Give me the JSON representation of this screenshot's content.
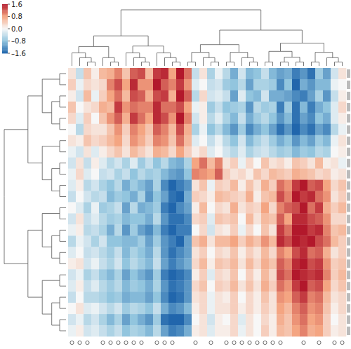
{
  "chart_data": {
    "type": "heatmap",
    "tick_labels": false,
    "color_range": [
      -1.6,
      1.6
    ],
    "color_ticks": [
      1.6,
      0.8,
      {
        "value": 0,
        "label": "0.0"
      },
      {
        "value": -0.8,
        "label": "–0.8"
      },
      {
        "value": -1.6,
        "label": "–1.6"
      }
    ],
    "column_markers": [
      1,
      1,
      1,
      0,
      1,
      1,
      1,
      1,
      1,
      1,
      0,
      1,
      1,
      1,
      0,
      0,
      1,
      0,
      1,
      0,
      1,
      1,
      1,
      1,
      1,
      1,
      1,
      1,
      0,
      0,
      1,
      0,
      1,
      0,
      1,
      1
    ],
    "cells": [
      [
        0.2,
        -0.4,
        0.5,
        0.1,
        0.6,
        0.7,
        1.0,
        0.5,
        1.2,
        1.3,
        0.6,
        1.4,
        1.5,
        0.8,
        1.6,
        1.1,
        -0.4,
        0.2,
        -0.6,
        -0.1,
        -0.5,
        -1.0,
        -0.3,
        -0.9,
        -0.8,
        -0.4,
        -0.9,
        -1.1,
        -1.0,
        -1.4,
        -1.2,
        -1.5,
        -0.7,
        -1.1,
        -0.3,
        0.2
      ],
      [
        0.4,
        -0.1,
        0.3,
        0.2,
        0.3,
        1.0,
        1.3,
        0.8,
        1.5,
        0.9,
        0.9,
        1.6,
        1.2,
        1.0,
        1.4,
        0.9,
        -0.2,
        0.0,
        -0.4,
        -0.3,
        -0.7,
        -0.8,
        -0.5,
        -1.1,
        -0.6,
        -0.6,
        -0.7,
        -1.3,
        -0.8,
        -1.6,
        -1.0,
        -1.2,
        -0.9,
        -0.9,
        -0.1,
        0.0
      ],
      [
        0.1,
        -0.3,
        0.6,
        -0.1,
        0.4,
        0.8,
        1.1,
        0.6,
        1.3,
        1.2,
        0.7,
        1.3,
        1.4,
        0.7,
        1.6,
        1.2,
        -0.5,
        0.3,
        -0.3,
        -0.2,
        -0.4,
        -1.1,
        -0.2,
        -0.8,
        -0.9,
        -0.3,
        -1.0,
        -1.0,
        -1.1,
        -1.3,
        -1.4,
        -1.1,
        -0.6,
        -1.2,
        -0.4,
        0.1
      ],
      [
        0.5,
        0.0,
        0.2,
        0.3,
        0.7,
        0.6,
        1.4,
        0.9,
        1.1,
        1.0,
        1.0,
        1.5,
        1.1,
        1.1,
        1.3,
        0.8,
        -0.1,
        0.1,
        -0.7,
        -0.4,
        -0.8,
        -0.7,
        -0.6,
        -1.2,
        -0.5,
        -0.7,
        -0.6,
        -1.4,
        -0.7,
        -1.5,
        -0.9,
        -1.4,
        -1.0,
        -0.8,
        -0.2,
        0.3
      ],
      [
        0.3,
        -0.2,
        0.4,
        0.0,
        0.5,
        0.9,
        1.2,
        0.7,
        1.4,
        1.1,
        0.8,
        1.5,
        1.3,
        0.9,
        1.6,
        1.0,
        -0.3,
        0.1,
        -0.5,
        -0.2,
        -0.6,
        -0.9,
        -0.4,
        -1.0,
        -0.7,
        -0.5,
        -0.8,
        -1.2,
        -0.9,
        -1.5,
        -1.1,
        -1.3,
        -0.8,
        -1.0,
        -0.2,
        0.1
      ],
      [
        0.0,
        -0.5,
        0.3,
        0.2,
        0.2,
        0.5,
        0.9,
        0.4,
        1.0,
        0.8,
        0.5,
        1.2,
        1.0,
        0.6,
        1.3,
        0.7,
        -0.6,
        -0.1,
        -0.8,
        -0.5,
        -0.9,
        -1.2,
        -0.7,
        -1.3,
        -1.0,
        -0.8,
        -1.1,
        -1.5,
        -1.2,
        -1.6,
        -1.3,
        -1.5,
        -1.1,
        -1.3,
        -0.5,
        -0.1
      ],
      [
        0.2,
        0.1,
        0.5,
        0.3,
        0.4,
        0.6,
        0.8,
        0.3,
        0.9,
        0.7,
        0.4,
        1.0,
        0.9,
        0.5,
        1.1,
        0.6,
        -0.2,
        0.0,
        -0.4,
        -0.1,
        -0.5,
        -0.8,
        -0.3,
        -0.9,
        -0.6,
        -0.4,
        -0.7,
        -1.0,
        -0.8,
        -1.2,
        -0.9,
        -1.1,
        -0.7,
        -0.9,
        -0.1,
        0.2
      ],
      [
        -0.1,
        -0.3,
        0.2,
        -0.2,
        0.1,
        0.3,
        0.5,
        0.2,
        0.6,
        0.4,
        0.2,
        0.7,
        0.6,
        0.3,
        0.8,
        0.4,
        0.1,
        0.3,
        -0.2,
        0.0,
        -0.3,
        -0.5,
        -0.2,
        -0.6,
        -0.4,
        -0.3,
        -0.5,
        -0.7,
        -0.6,
        -0.9,
        -0.7,
        -0.8,
        -0.5,
        -0.6,
        0.0,
        0.1
      ],
      [
        -0.3,
        0.2,
        -0.4,
        0.1,
        -0.2,
        -0.5,
        -0.3,
        -0.6,
        -0.2,
        -0.7,
        -0.4,
        -0.8,
        -0.5,
        -0.9,
        -1.0,
        -0.6,
        0.8,
        1.1,
        0.6,
        1.0,
        0.2,
        0.4,
        -0.1,
        0.3,
        0.0,
        0.5,
        0.2,
        0.3,
        0.1,
        0.5,
        0.4,
        0.2,
        0.6,
        0.1,
        0.2,
        -0.1
      ],
      [
        -0.1,
        0.3,
        -0.2,
        0.0,
        -0.4,
        -0.3,
        -0.6,
        -0.4,
        -0.8,
        -0.5,
        -0.7,
        -0.6,
        -0.9,
        -1.1,
        -1.2,
        -0.8,
        1.0,
        0.9,
        0.8,
        1.2,
        0.4,
        0.2,
        0.3,
        0.1,
        0.5,
        0.3,
        0.6,
        0.5,
        0.4,
        0.7,
        0.6,
        0.5,
        0.3,
        0.4,
        0.1,
        0.2
      ],
      [
        -0.2,
        0.1,
        -0.5,
        -0.3,
        -0.6,
        -0.8,
        -0.5,
        -1.0,
        -0.7,
        -0.9,
        -1.1,
        -0.6,
        -1.3,
        -1.6,
        -1.4,
        -1.2,
        0.2,
        0.5,
        -0.1,
        0.4,
        0.3,
        0.6,
        0.1,
        0.5,
        0.2,
        0.7,
        0.4,
        1.1,
        0.9,
        1.4,
        1.6,
        1.2,
        1.3,
        0.8,
        0.3,
        0.5
      ],
      [
        -0.4,
        0.0,
        -0.3,
        -0.5,
        -0.4,
        -0.9,
        -0.7,
        -0.8,
        -1.0,
        -0.6,
        -1.2,
        -0.8,
        -1.1,
        -1.5,
        -1.6,
        -1.0,
        0.4,
        0.3,
        0.1,
        0.6,
        0.5,
        0.4,
        0.3,
        0.7,
        0.1,
        0.5,
        0.6,
        1.3,
        1.0,
        1.6,
        1.4,
        1.5,
        1.1,
        0.9,
        0.2,
        0.4
      ],
      [
        0.0,
        -0.2,
        -0.6,
        -0.1,
        -0.7,
        -0.6,
        -0.4,
        -1.1,
        -0.5,
        -1.0,
        -0.9,
        -0.7,
        -1.4,
        -1.6,
        -1.3,
        -1.1,
        0.1,
        0.6,
        0.0,
        0.3,
        0.2,
        0.7,
        0.2,
        0.4,
        0.3,
        0.8,
        0.3,
        1.0,
        1.2,
        1.3,
        1.6,
        1.1,
        1.4,
        0.7,
        0.4,
        0.6
      ],
      [
        -0.3,
        0.2,
        -0.4,
        -0.2,
        -0.5,
        -0.7,
        -0.6,
        -0.9,
        -0.8,
        -0.8,
        -1.0,
        -0.5,
        -1.2,
        -1.5,
        -1.5,
        -1.3,
        0.3,
        0.4,
        -0.2,
        0.5,
        0.4,
        0.5,
        0.0,
        0.6,
        0.2,
        0.6,
        0.5,
        1.2,
        0.8,
        1.5,
        1.5,
        1.3,
        1.2,
        0.9,
        0.3,
        0.3
      ],
      [
        -0.1,
        0.1,
        -0.5,
        -0.4,
        -0.6,
        -1.0,
        -0.5,
        -1.2,
        -0.7,
        -1.1,
        -1.3,
        -0.9,
        -1.4,
        -1.6,
        -1.4,
        -1.4,
        0.0,
        0.3,
        -0.3,
        0.2,
        0.1,
        0.4,
        -0.1,
        0.3,
        0.0,
        0.5,
        0.2,
        1.4,
        1.1,
        1.6,
        1.6,
        1.4,
        1.5,
        1.0,
        0.5,
        0.6
      ],
      [
        -0.5,
        -0.1,
        -0.3,
        -0.6,
        -0.3,
        -0.8,
        -0.8,
        -0.9,
        -0.9,
        -0.7,
        -1.1,
        -0.7,
        -1.2,
        -1.4,
        -1.6,
        -1.1,
        0.5,
        0.7,
        0.2,
        0.6,
        0.6,
        0.8,
        0.4,
        0.7,
        0.5,
        0.9,
        0.6,
        1.5,
        1.3,
        1.6,
        1.5,
        1.6,
        1.3,
        1.1,
        0.6,
        0.4
      ],
      [
        -0.2,
        0.0,
        -0.4,
        -0.3,
        -0.5,
        -0.7,
        -0.4,
        -0.9,
        -0.6,
        -0.8,
        -1.0,
        -0.5,
        -1.2,
        -1.5,
        -1.3,
        -1.1,
        0.2,
        0.4,
        0.0,
        0.3,
        0.2,
        0.5,
        0.1,
        0.4,
        0.2,
        0.6,
        0.3,
        1.0,
        0.8,
        1.3,
        1.5,
        1.1,
        1.2,
        0.7,
        0.2,
        0.4
      ],
      [
        0.1,
        0.2,
        -0.3,
        -0.1,
        -0.4,
        -0.6,
        -0.3,
        -0.8,
        -0.5,
        -0.7,
        -0.9,
        -0.4,
        -1.1,
        -1.4,
        -1.2,
        -1.0,
        0.3,
        0.6,
        0.1,
        0.5,
        0.4,
        0.6,
        0.2,
        0.6,
        0.3,
        0.7,
        0.5,
        1.2,
        1.0,
        1.5,
        1.6,
        1.3,
        1.4,
        0.9,
        0.4,
        0.5
      ],
      [
        -0.3,
        -0.1,
        -0.6,
        -0.4,
        -0.7,
        -0.9,
        -0.6,
        -1.1,
        -0.8,
        -1.0,
        -1.2,
        -0.7,
        -1.4,
        -1.6,
        -1.5,
        -1.3,
        0.1,
        0.4,
        -0.2,
        0.3,
        0.2,
        0.5,
        0.0,
        0.4,
        0.1,
        0.6,
        0.3,
        1.3,
        1.1,
        1.6,
        1.5,
        1.4,
        1.5,
        1.0,
        0.4,
        0.6
      ],
      [
        -0.2,
        0.1,
        -0.4,
        -0.2,
        -0.5,
        -0.7,
        -0.5,
        -0.9,
        -0.7,
        -0.8,
        -1.0,
        -0.6,
        -1.2,
        -1.5,
        -1.4,
        -1.2,
        0.3,
        0.5,
        0.0,
        0.4,
        0.3,
        0.6,
        0.2,
        0.5,
        0.2,
        0.7,
        0.4,
        1.1,
        0.9,
        1.4,
        1.6,
        1.2,
        1.3,
        0.8,
        0.3,
        0.5
      ],
      [
        -0.4,
        0.0,
        -0.5,
        -0.5,
        -0.6,
        -0.8,
        -0.7,
        -1.0,
        -0.9,
        -0.9,
        -1.1,
        -0.8,
        -1.3,
        -1.6,
        -1.5,
        -1.2,
        0.2,
        0.3,
        -0.1,
        0.2,
        0.1,
        0.4,
        0.0,
        0.3,
        0.1,
        0.5,
        0.2,
        0.9,
        0.8,
        1.2,
        1.4,
        1.0,
        1.1,
        0.6,
        0.2,
        0.3
      ],
      [
        0.0,
        0.2,
        -0.2,
        -0.1,
        -0.3,
        -0.5,
        -0.3,
        -0.7,
        -0.5,
        -0.6,
        -0.8,
        -0.4,
        -1.0,
        -1.3,
        -1.2,
        -0.9,
        0.1,
        0.3,
        -0.1,
        0.2,
        0.2,
        0.4,
        0.1,
        0.3,
        0.1,
        0.4,
        0.2,
        0.8,
        0.6,
        1.0,
        1.2,
        0.9,
        1.0,
        0.5,
        0.1,
        0.3
      ],
      [
        -0.3,
        -0.1,
        -0.5,
        -0.3,
        -0.6,
        -0.9,
        -0.6,
        -1.1,
        -0.8,
        -1.0,
        -1.2,
        -0.7,
        -1.5,
        -1.6,
        -1.6,
        -1.3,
        0.0,
        0.2,
        -0.3,
        0.1,
        0.0,
        0.3,
        -0.2,
        0.2,
        0.0,
        0.3,
        0.1,
        0.7,
        0.5,
        0.9,
        1.1,
        0.8,
        0.9,
        0.4,
        0.0,
        0.2
      ],
      [
        -0.1,
        0.1,
        -0.3,
        -0.2,
        -0.4,
        -0.6,
        -0.4,
        -0.8,
        -0.6,
        -0.7,
        -0.9,
        -0.5,
        -1.1,
        -1.4,
        -1.3,
        -1.0,
        0.1,
        0.2,
        -0.2,
        0.1,
        0.1,
        0.3,
        -0.1,
        0.2,
        0.0,
        0.4,
        0.1,
        0.6,
        0.5,
        0.8,
        1.0,
        0.7,
        0.8,
        0.4,
        0.1,
        0.2
      ]
    ]
  }
}
